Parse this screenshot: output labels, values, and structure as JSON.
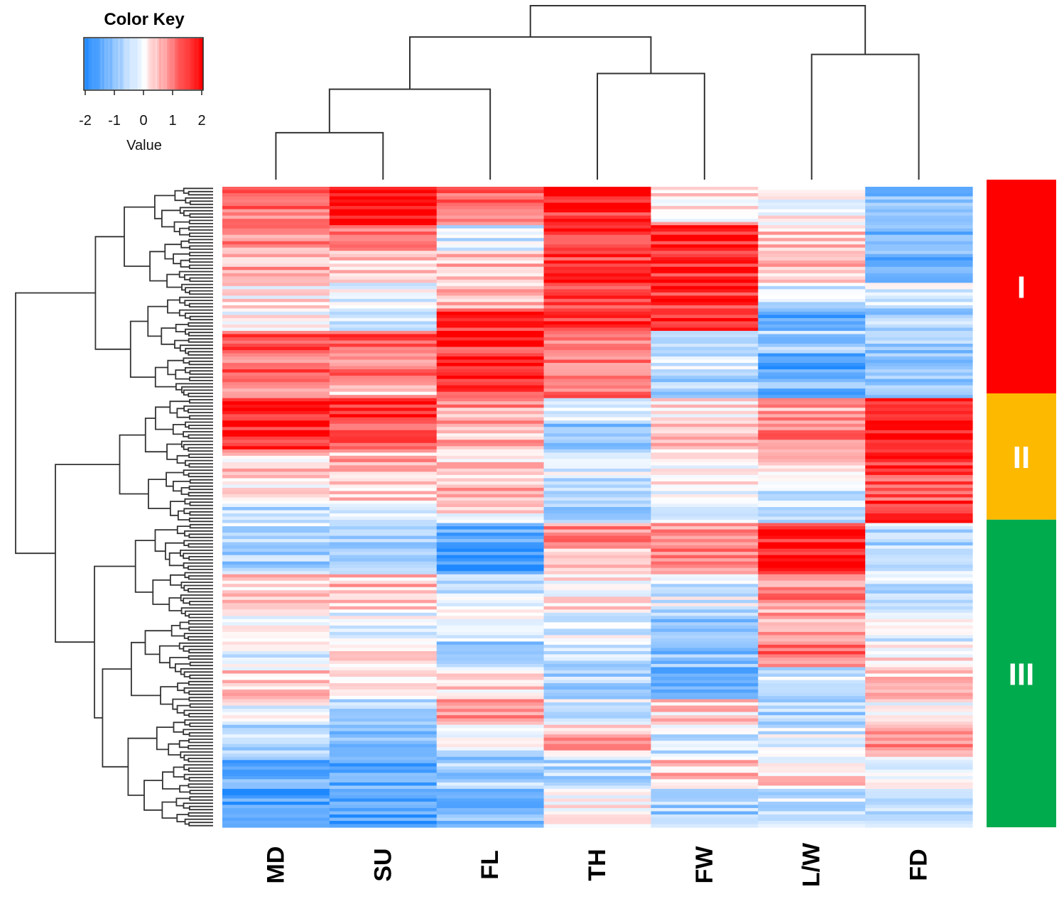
{
  "chart_data": {
    "type": "heatmap",
    "columns": [
      "MD",
      "SU",
      "FL",
      "TH",
      "FW",
      "L/W",
      "FD"
    ],
    "color_key": {
      "title": "Color Key",
      "label": "Value",
      "ticks": [
        "-2",
        "-1",
        "0",
        "1",
        "2"
      ],
      "range": [
        -2,
        2
      ],
      "low_color": "#1e88ff",
      "mid_color": "#ffffff",
      "high_color": "#ff0000"
    },
    "clusters": [
      {
        "label": "I",
        "color": "#ff0000",
        "row_start": 0,
        "row_end": 66
      },
      {
        "label": "II",
        "color": "#fdb900",
        "row_start": 66,
        "row_end": 105
      },
      {
        "label": "III",
        "color": "#00ab4e",
        "row_start": 105,
        "row_end": 200
      }
    ],
    "column_dendrogram": {
      "order": [
        "MD",
        "SU",
        "FL",
        "TH",
        "FW",
        "L/W",
        "FD"
      ],
      "merges": [
        {
          "left": "MD",
          "right": "SU",
          "height": 0.27
        },
        {
          "left": "TH",
          "right": "FW",
          "height": 0.61
        },
        {
          "left": "L/W",
          "right": "FD",
          "height": 0.72
        },
        {
          "left": "MD+SU",
          "right": "FL",
          "height": 0.52
        },
        {
          "left": "MD+SU+FL",
          "right": "TH+FW",
          "height": 0.82
        },
        {
          "left": "MD+SU+FL+TH+FW",
          "right": "L/W+FD",
          "height": 1.0
        }
      ]
    },
    "row_count": 200,
    "row_blocks": [
      {
        "rows": [
          0,
          6
        ],
        "values": [
          1.1,
          1.9,
          1.2,
          1.8,
          0.2,
          -0.2,
          -1.1
        ]
      },
      {
        "rows": [
          6,
          12
        ],
        "values": [
          1.2,
          1.8,
          1.0,
          1.7,
          0.3,
          0.1,
          -1.0
        ]
      },
      {
        "rows": [
          12,
          20
        ],
        "values": [
          0.8,
          1.0,
          -0.3,
          1.4,
          1.8,
          0.4,
          -1.2
        ]
      },
      {
        "rows": [
          20,
          30
        ],
        "values": [
          0.6,
          0.4,
          0.5,
          1.6,
          1.7,
          0.5,
          -1.3
        ]
      },
      {
        "rows": [
          30,
          38
        ],
        "values": [
          0.2,
          -0.3,
          0.6,
          1.5,
          1.6,
          -0.5,
          -0.4
        ]
      },
      {
        "rows": [
          38,
          45
        ],
        "values": [
          0.1,
          -0.4,
          1.7,
          1.7,
          1.5,
          -1.5,
          -0.8
        ]
      },
      {
        "rows": [
          45,
          52
        ],
        "values": [
          1.5,
          1.4,
          1.6,
          0.8,
          -0.7,
          -0.8,
          -0.9
        ]
      },
      {
        "rows": [
          52,
          60
        ],
        "values": [
          1.2,
          1.0,
          1.9,
          1.2,
          -0.4,
          -1.6,
          -1.0
        ]
      },
      {
        "rows": [
          60,
          66
        ],
        "values": [
          1.0,
          0.5,
          1.5,
          1.0,
          -0.8,
          -1.2,
          -1.1
        ]
      },
      {
        "rows": [
          66,
          74
        ],
        "values": [
          1.9,
          1.8,
          0.8,
          -0.5,
          0.3,
          0.8,
          1.7
        ]
      },
      {
        "rows": [
          74,
          82
        ],
        "values": [
          1.8,
          1.2,
          0.5,
          -1.1,
          0.6,
          1.0,
          1.9
        ]
      },
      {
        "rows": [
          82,
          91
        ],
        "values": [
          0.4,
          0.6,
          0.3,
          -0.3,
          -0.2,
          0.2,
          1.5
        ]
      },
      {
        "rows": [
          91,
          98
        ],
        "values": [
          0.0,
          0.3,
          0.6,
          -0.6,
          0.0,
          -0.4,
          1.4
        ]
      },
      {
        "rows": [
          98,
          105
        ],
        "values": [
          -0.5,
          -0.3,
          0.2,
          -0.7,
          -0.5,
          -0.5,
          1.8
        ]
      },
      {
        "rows": [
          105,
          113
        ],
        "values": [
          -0.5,
          -0.6,
          -1.3,
          0.9,
          1.0,
          1.8,
          -0.6
        ]
      },
      {
        "rows": [
          113,
          121
        ],
        "values": [
          -0.8,
          -0.9,
          -1.8,
          0.6,
          1.1,
          1.9,
          -0.4
        ]
      },
      {
        "rows": [
          121,
          132
        ],
        "values": [
          0.3,
          0.5,
          -0.5,
          0.2,
          -0.3,
          0.9,
          -0.5
        ]
      },
      {
        "rows": [
          132,
          142
        ],
        "values": [
          0.1,
          -0.1,
          -0.3,
          -0.2,
          -0.9,
          0.6,
          -0.3
        ]
      },
      {
        "rows": [
          142,
          150
        ],
        "values": [
          -0.2,
          0.1,
          -1.0,
          -0.5,
          -1.0,
          1.1,
          0.2
        ]
      },
      {
        "rows": [
          150,
          160
        ],
        "values": [
          0.3,
          0.1,
          0.3,
          -0.7,
          -1.2,
          -0.5,
          0.3
        ]
      },
      {
        "rows": [
          160,
          168
        ],
        "values": [
          -0.1,
          -0.5,
          1.0,
          -0.3,
          0.3,
          -0.8,
          -0.1
        ]
      },
      {
        "rows": [
          168,
          178
        ],
        "values": [
          -0.7,
          -0.9,
          -0.2,
          0.6,
          -0.4,
          -0.3,
          0.9
        ]
      },
      {
        "rows": [
          178,
          188
        ],
        "values": [
          -1.3,
          -1.4,
          -0.8,
          -0.6,
          0.4,
          0.2,
          -0.3
        ]
      },
      {
        "rows": [
          188,
          200
        ],
        "values": [
          -1.6,
          -1.5,
          -1.1,
          0.1,
          -0.8,
          -0.5,
          -0.6
        ]
      }
    ]
  }
}
